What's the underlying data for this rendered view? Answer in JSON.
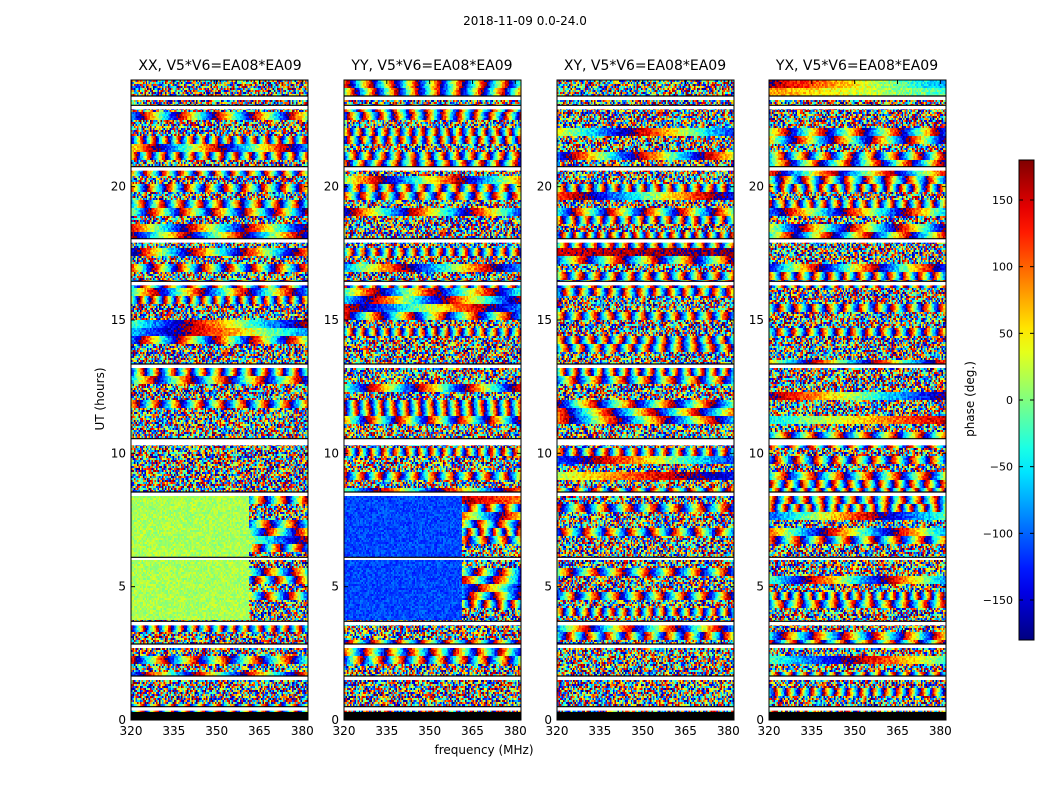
{
  "figure": {
    "suptitle": "2018-11-09 0.0-24.0"
  },
  "chart_data": {
    "type": "heatmap",
    "title": "2018-11-09 0.0-24.0",
    "xlabel": "frequency (MHz)",
    "ylabel": "UT (hours)",
    "xlim": [
      320,
      382
    ],
    "ylim": [
      0,
      24
    ],
    "x_ticks": [
      320,
      335,
      350,
      365,
      380
    ],
    "y_ticks": [
      0,
      5,
      10,
      15,
      20
    ],
    "colorscale": "jet",
    "grid": false,
    "panels": [
      {
        "title": "XX, V5*V6=EA08*EA09",
        "polarization": "XX"
      },
      {
        "title": "YY, V5*V6=EA08*EA09",
        "polarization": "YY"
      },
      {
        "title": "XY, V5*V6=EA08*EA09",
        "polarization": "XY"
      },
      {
        "title": "YX, V5*V6=EA08*EA09",
        "polarization": "YX"
      }
    ],
    "colorbar": {
      "label": "phase (deg.)",
      "range": [
        -180,
        180
      ],
      "ticks": [
        -150,
        -100,
        -50,
        0,
        50,
        100,
        150
      ],
      "tick_labels": [
        "−150",
        "−100",
        "−50",
        "0",
        "50",
        "100",
        "150"
      ]
    },
    "gaps_ut_hours": [
      [
        0.35,
        0.5
      ],
      [
        1.5,
        1.65
      ],
      [
        2.7,
        2.85
      ],
      [
        3.55,
        3.7
      ],
      [
        6.0,
        6.1
      ],
      [
        8.4,
        8.55
      ],
      [
        10.3,
        10.55
      ],
      [
        13.2,
        13.35
      ],
      [
        16.3,
        16.45
      ],
      [
        17.9,
        18.05
      ],
      [
        20.6,
        20.75
      ],
      [
        22.9,
        23.05
      ],
      [
        23.25,
        23.4
      ]
    ],
    "smooth_phase_regions": [
      {
        "panel": "XX",
        "ut": [
          3.8,
          8.4
        ],
        "freq": [
          320,
          361
        ],
        "phase_deg": 15
      },
      {
        "panel": "YY",
        "ut": [
          3.8,
          8.4
        ],
        "freq": [
          320,
          361
        ],
        "phase_deg": -110
      }
    ]
  }
}
